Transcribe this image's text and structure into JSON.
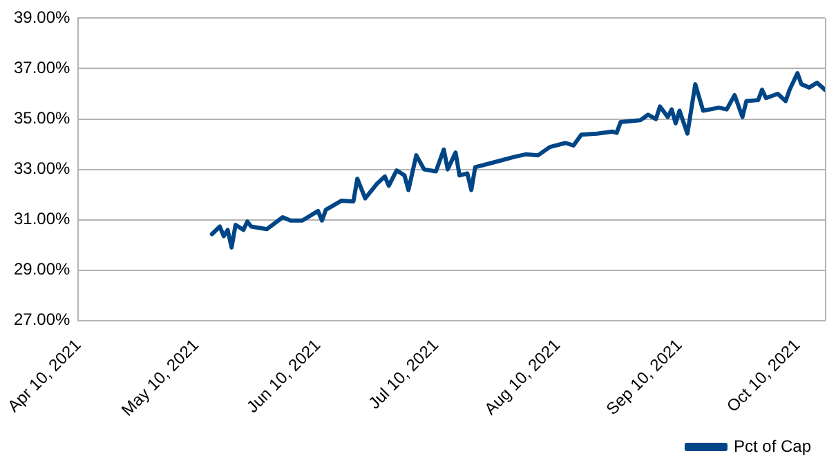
{
  "chart_data": {
    "type": "line",
    "x": [
      "2021-05-14",
      "2021-05-16",
      "2021-05-17",
      "2021-05-18",
      "2021-05-19",
      "2021-05-20",
      "2021-05-22",
      "2021-05-23",
      "2021-05-24",
      "2021-05-28",
      "2021-06-01",
      "2021-06-03",
      "2021-06-06",
      "2021-06-10",
      "2021-06-11",
      "2021-06-12",
      "2021-06-16",
      "2021-06-19",
      "2021-06-20",
      "2021-06-22",
      "2021-06-25",
      "2021-06-27",
      "2021-06-28",
      "2021-06-30",
      "2021-07-02",
      "2021-07-03",
      "2021-07-05",
      "2021-07-07",
      "2021-07-10",
      "2021-07-12",
      "2021-07-13",
      "2021-07-15",
      "2021-07-16",
      "2021-07-18",
      "2021-07-19",
      "2021-07-20",
      "2021-07-25",
      "2021-07-30",
      "2021-08-02",
      "2021-08-05",
      "2021-08-08",
      "2021-08-12",
      "2021-08-14",
      "2021-08-16",
      "2021-08-20",
      "2021-08-24",
      "2021-08-25",
      "2021-08-26",
      "2021-08-31",
      "2021-09-02",
      "2021-09-04",
      "2021-09-05",
      "2021-09-07",
      "2021-09-08",
      "2021-09-09",
      "2021-09-10",
      "2021-09-12",
      "2021-09-14",
      "2021-09-16",
      "2021-09-20",
      "2021-09-22",
      "2021-09-24",
      "2021-09-26",
      "2021-09-27",
      "2021-09-30",
      "2021-10-01",
      "2021-10-02",
      "2021-10-05",
      "2021-10-07",
      "2021-10-08",
      "2021-10-10",
      "2021-10-11",
      "2021-10-13",
      "2021-10-15",
      "2021-10-17"
    ],
    "series": [
      {
        "name": "Pct of Cap",
        "color": "#004586",
        "values": [
          30.43,
          30.73,
          30.35,
          30.6,
          29.9,
          30.8,
          30.6,
          30.93,
          30.73,
          30.63,
          31.1,
          30.97,
          30.97,
          31.35,
          30.97,
          31.4,
          31.76,
          31.73,
          32.63,
          31.85,
          32.43,
          32.72,
          32.35,
          32.96,
          32.76,
          32.18,
          33.56,
          33.0,
          32.92,
          33.79,
          33.0,
          33.67,
          32.76,
          32.84,
          32.18,
          33.09,
          33.29,
          33.5,
          33.6,
          33.56,
          33.89,
          34.05,
          33.95,
          34.38,
          34.42,
          34.5,
          34.45,
          34.88,
          34.95,
          35.17,
          35.0,
          35.5,
          35.08,
          35.38,
          34.83,
          35.33,
          34.42,
          36.38,
          35.33,
          35.45,
          35.38,
          35.95,
          35.08,
          35.71,
          35.75,
          36.16,
          35.83,
          36.0,
          35.71,
          36.16,
          36.82,
          36.38,
          36.25,
          36.44,
          36.16
        ]
      }
    ],
    "xlim": [
      "2021-04-10",
      "2021-10-17"
    ],
    "xticks": [
      {
        "value": "2021-04-10",
        "label": "Apr 10, 2021"
      },
      {
        "value": "2021-05-10",
        "label": "May 10, 2021"
      },
      {
        "value": "2021-06-10",
        "label": "Jun 10, 2021"
      },
      {
        "value": "2021-07-10",
        "label": "Jul 10, 2021"
      },
      {
        "value": "2021-08-10",
        "label": "Aug 10, 2021"
      },
      {
        "value": "2021-09-10",
        "label": "Sep 10, 2021"
      },
      {
        "value": "2021-10-10",
        "label": "Oct 10, 2021"
      }
    ],
    "ylim": [
      27,
      39
    ],
    "yticks": [
      {
        "value": 27,
        "label": "27.00%"
      },
      {
        "value": 29,
        "label": "29.00%"
      },
      {
        "value": 31,
        "label": "31.00%"
      },
      {
        "value": 33,
        "label": "33.00%"
      },
      {
        "value": 35,
        "label": "35.00%"
      },
      {
        "value": 37,
        "label": "37.00%"
      },
      {
        "value": 39,
        "label": "39.00%"
      }
    ],
    "grid": "y",
    "legend": "bottom right",
    "marker": "none",
    "line_style": "solid"
  }
}
